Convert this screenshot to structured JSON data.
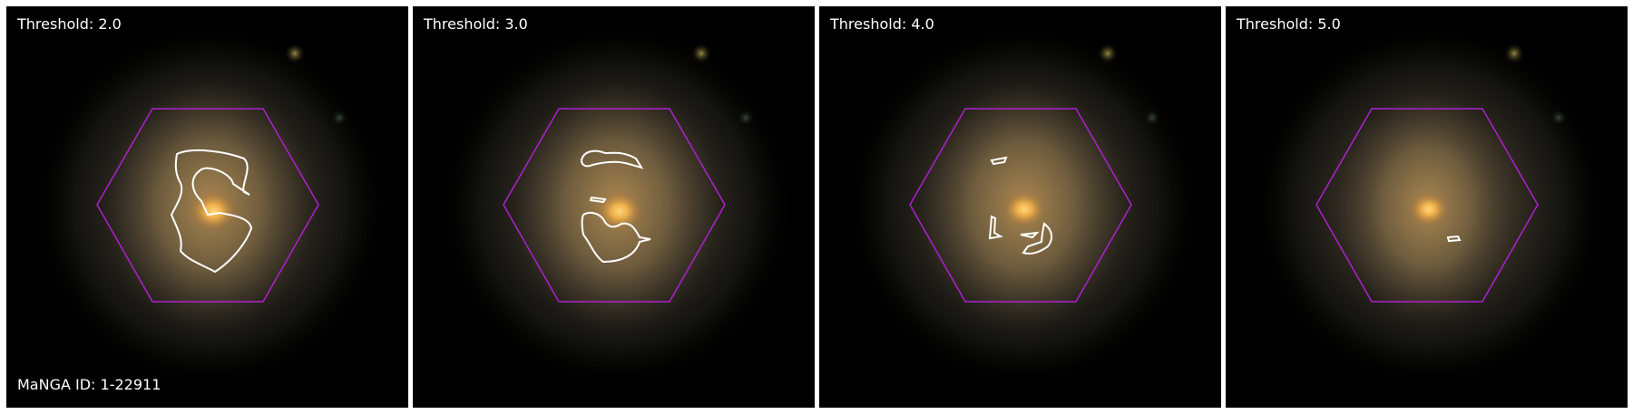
{
  "figure": {
    "manga_id_label": "MaNGA ID: 1-22911",
    "panels": [
      {
        "threshold_label": "Threshold: 2.0"
      },
      {
        "threshold_label": "Threshold: 3.0"
      },
      {
        "threshold_label": "Threshold: 4.0"
      },
      {
        "threshold_label": "Threshold: 5.0"
      }
    ],
    "colors": {
      "background": "#000000",
      "hexagon": "#b01fd0",
      "contour": "#ffffff",
      "galaxy_core": "#f2b24c"
    },
    "icons": {
      "hexagon": "ifu-hexagon-outline",
      "contour": "threshold-contour"
    }
  }
}
